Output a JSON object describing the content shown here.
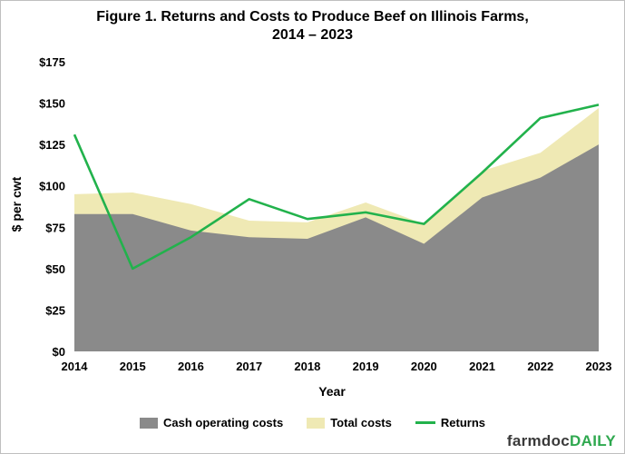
{
  "title_line1": "Figure  1. Returns and Costs to Produce Beef on Illinois Farms,",
  "title_line2": "2014 – 2023",
  "brand": {
    "part1": "farmdoc",
    "part2": "DAILY"
  },
  "legend": {
    "cash": "Cash operating costs",
    "total": "Total costs",
    "returns": "Returns"
  },
  "colors": {
    "cash": "#8a8a8a",
    "total": "#efe9b4",
    "returns": "#22b24c"
  },
  "chart_data": {
    "type": "area",
    "title": "Figure  1. Returns and Costs to Produce Beef on Illinois Farms, 2014 – 2023",
    "xlabel": "Year",
    "ylabel": "$ per cwt",
    "ylim": [
      0,
      175
    ],
    "y_ticks": [
      "$0",
      "$25",
      "$50",
      "$75",
      "$100",
      "$125",
      "$150",
      "$175"
    ],
    "y_tick_values": [
      0,
      25,
      50,
      75,
      100,
      125,
      150,
      175
    ],
    "x": [
      "2014",
      "2015",
      "2016",
      "2017",
      "2018",
      "2019",
      "2020",
      "2021",
      "2022",
      "2023"
    ],
    "grid": false,
    "legend_position": "bottom",
    "series": [
      {
        "name": "Cash operating costs",
        "kind": "area",
        "values": [
          83,
          83,
          73,
          69,
          68,
          81,
          65,
          93,
          105,
          125
        ]
      },
      {
        "name": "Total costs",
        "kind": "area",
        "values": [
          95,
          96,
          89,
          79,
          78,
          90,
          77,
          109,
          120,
          147
        ]
      },
      {
        "name": "Returns",
        "kind": "line",
        "values": [
          131,
          50,
          69,
          92,
          80,
          84,
          77,
          108,
          141,
          149
        ]
      }
    ]
  }
}
